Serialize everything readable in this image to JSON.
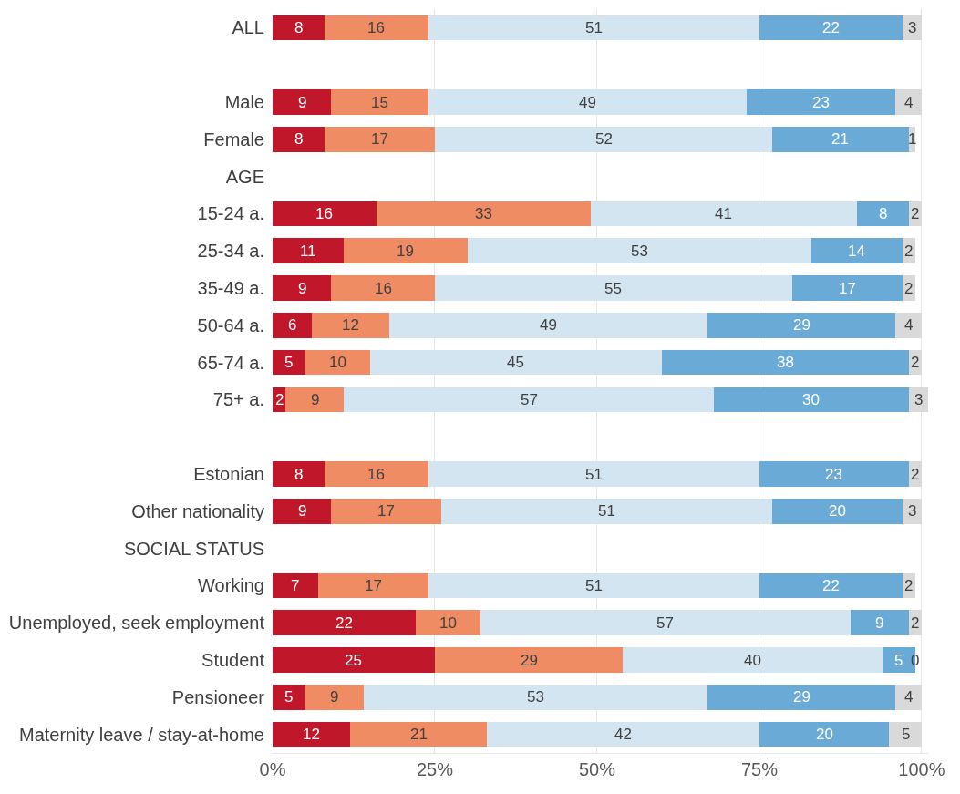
{
  "chart_data": {
    "type": "bar",
    "orientation": "horizontal",
    "stacked": true,
    "data_labels": true,
    "grid": "x",
    "categories": [
      "ALL",
      null,
      "Male",
      "Female",
      "AGE",
      "15-24 a.",
      "25-34 a.",
      "35-49 a.",
      "50-64 a.",
      "65-74 a.",
      "75+ a.",
      null,
      "Estonian",
      "Other nationality",
      "SOCIAL STATUS",
      "Working",
      "Unemployed, seek employment",
      "Student",
      "Pensioneer",
      "Maternity leave / stay-at-home"
    ],
    "xlim": [
      0,
      101
    ],
    "xticks": [
      {
        "value": 0,
        "label": "0%"
      },
      {
        "value": 25,
        "label": "25%"
      },
      {
        "value": 50,
        "label": "50%"
      },
      {
        "value": 75,
        "label": "75%"
      },
      {
        "value": 100,
        "label": "100%"
      }
    ],
    "series": [
      {
        "color": "#c0182a",
        "values": [
          8,
          null,
          9,
          8,
          null,
          16,
          11,
          9,
          6,
          5,
          2,
          null,
          8,
          9,
          null,
          7,
          22,
          25,
          5,
          12
        ]
      },
      {
        "color": "#f08c64",
        "values": [
          16,
          null,
          15,
          17,
          null,
          33,
          19,
          16,
          12,
          10,
          9,
          null,
          16,
          17,
          null,
          17,
          10,
          29,
          9,
          21
        ]
      },
      {
        "color": "#d3e5f1",
        "values": [
          51,
          null,
          49,
          52,
          null,
          41,
          53,
          55,
          49,
          45,
          57,
          null,
          51,
          51,
          null,
          51,
          57,
          40,
          53,
          42
        ]
      },
      {
        "color": "#6aaad6",
        "values": [
          22,
          null,
          23,
          21,
          null,
          8,
          14,
          17,
          29,
          38,
          30,
          null,
          23,
          20,
          null,
          22,
          9,
          5,
          29,
          20
        ]
      },
      {
        "color": "#d9d9d9",
        "values": [
          3,
          null,
          4,
          1,
          null,
          2,
          2,
          2,
          4,
          2,
          3,
          null,
          2,
          3,
          null,
          2,
          2,
          0,
          4,
          5
        ]
      }
    ]
  }
}
